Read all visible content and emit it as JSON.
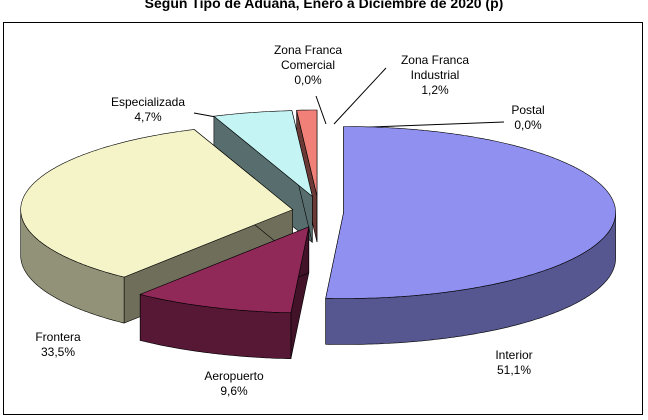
{
  "chart_data": {
    "type": "pie3d",
    "title": "Según Tipo de Aduana, Enero a Diciembre de 2020 (p)",
    "categories": [
      "Interior",
      "Aeropuerto",
      "Frontera",
      "Especializada",
      "Zona Franca Comercial",
      "Zona Franca Industrial",
      "Postal"
    ],
    "values": [
      51.1,
      9.6,
      33.5,
      4.7,
      0.0,
      1.2,
      0.0
    ],
    "value_labels": [
      "51,1%",
      "9,6%",
      "33,5%",
      "4,7%",
      "0,0%",
      "1,2%",
      "0,0%"
    ],
    "colors": [
      "#9090f0",
      "#902858",
      "#f4f4c8",
      "#c4f4f4",
      "#c0c0c0",
      "#f08078",
      "#f8f8f8"
    ]
  }
}
